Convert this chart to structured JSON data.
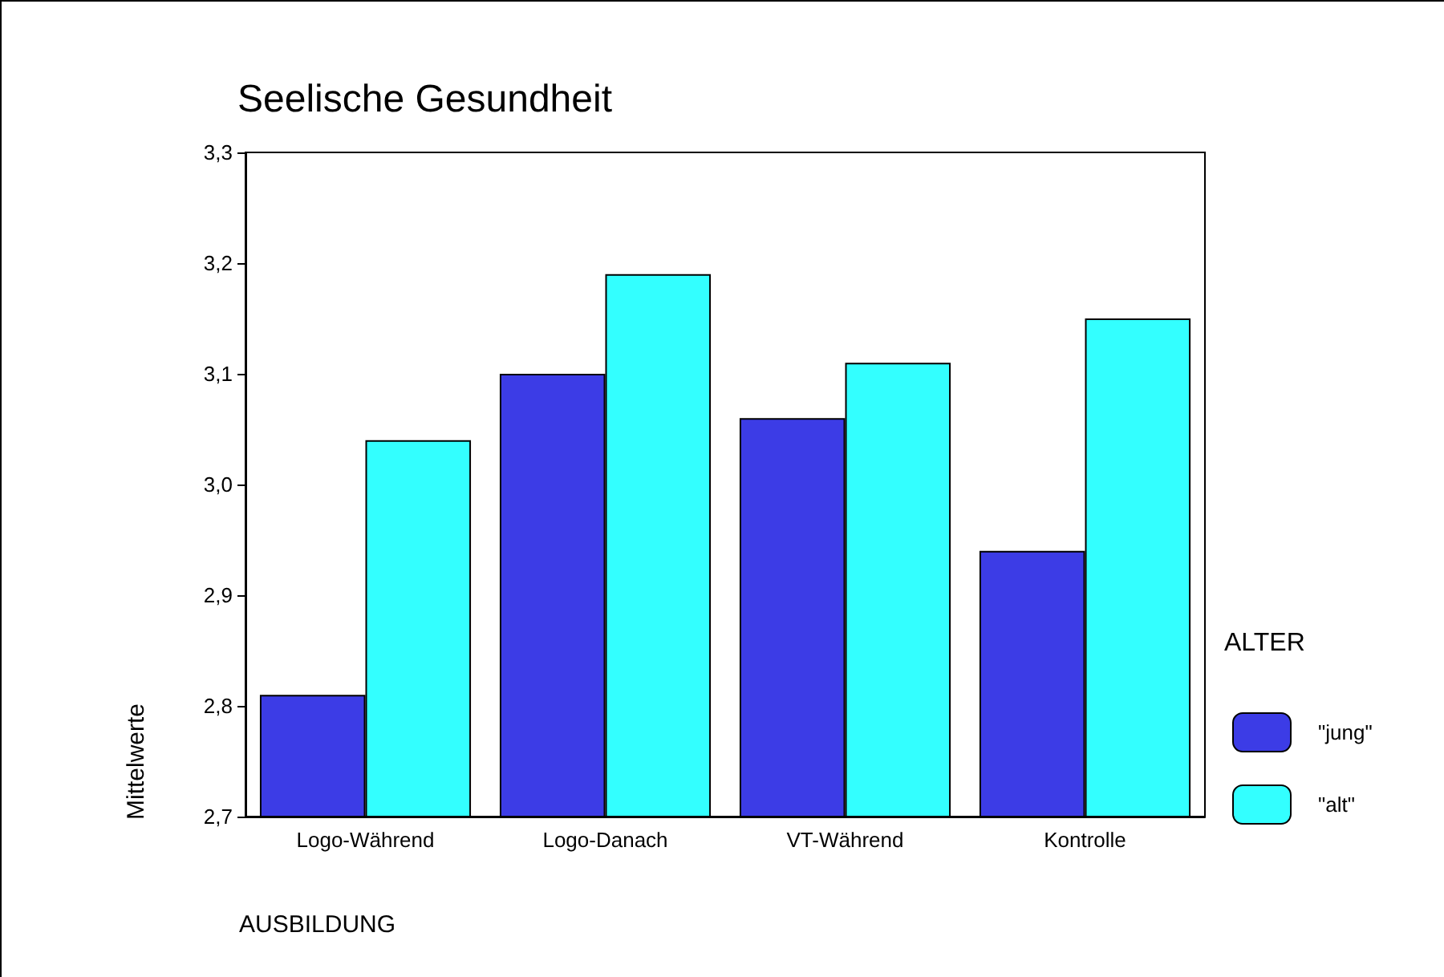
{
  "chart_data": {
    "type": "bar",
    "title": "Seelische Gesundheit",
    "xlabel": "AUSBILDUNG",
    "ylabel": "Mittelwerte",
    "legend_title": "ALTER",
    "categories": [
      "Logo-Während",
      "Logo-Danach",
      "VT-Während",
      "Kontrolle"
    ],
    "series": [
      {
        "name": "\"jung\"",
        "color": "#3c3ce6",
        "values": [
          2.81,
          3.1,
          3.06,
          2.94
        ]
      },
      {
        "name": "\"alt\"",
        "color": "#33ffff",
        "values": [
          3.04,
          3.19,
          3.11,
          3.15
        ]
      }
    ],
    "ylim": [
      2.7,
      3.3
    ],
    "yticks": [
      {
        "value": 2.7,
        "label": "2,7"
      },
      {
        "value": 2.8,
        "label": "2,8"
      },
      {
        "value": 2.9,
        "label": "2,9"
      },
      {
        "value": 3.0,
        "label": "3,0"
      },
      {
        "value": 3.1,
        "label": "3,1"
      },
      {
        "value": 3.2,
        "label": "3,2"
      },
      {
        "value": 3.3,
        "label": "3,3"
      }
    ],
    "grid": false,
    "legend": "right"
  }
}
